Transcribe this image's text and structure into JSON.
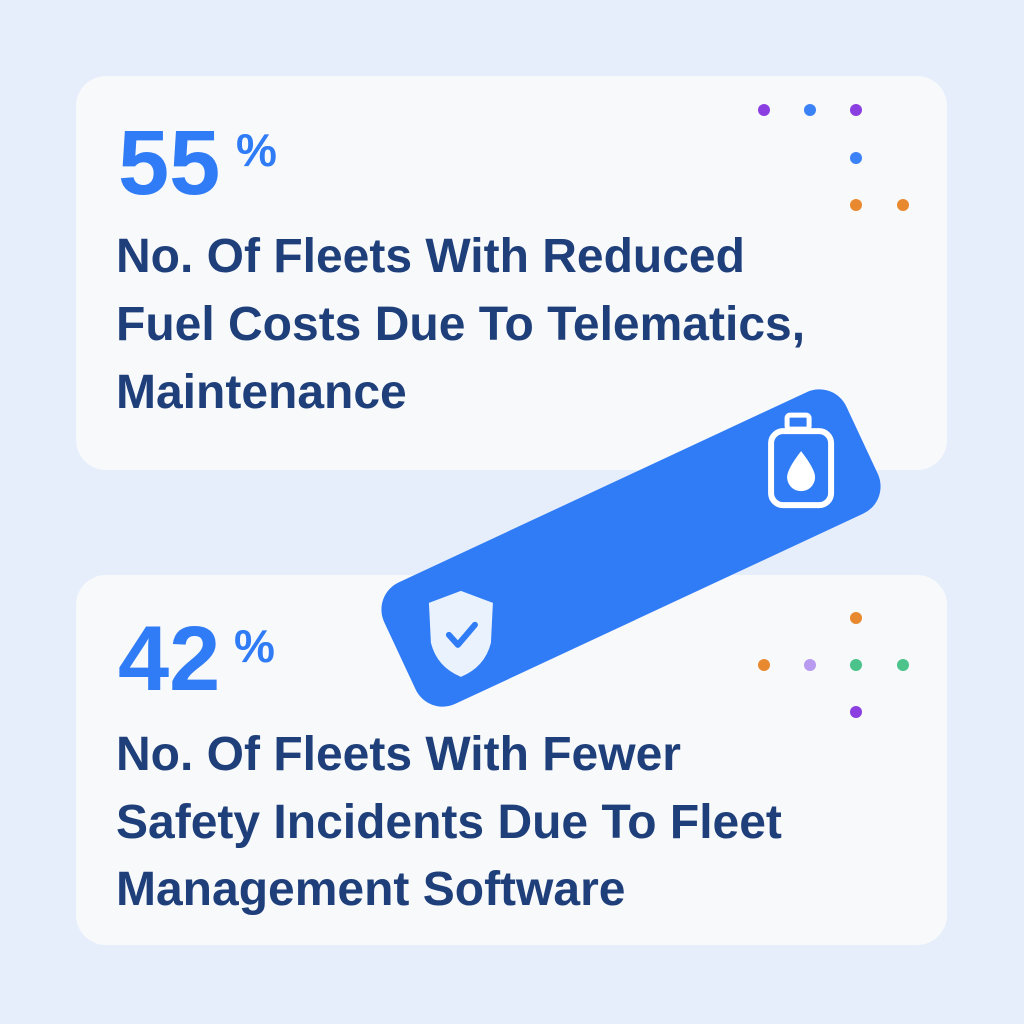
{
  "stats": [
    {
      "value": "55",
      "unit": "%",
      "lines": [
        "No. Of Fleets With Reduced",
        "Fuel Costs Due To Telematics,",
        "Maintenance"
      ]
    },
    {
      "value": "42",
      "unit": "%",
      "lines": [
        "No. Of Fleets With Fewer",
        "Safety Incidents Due To Fleet",
        "Management Software"
      ]
    }
  ]
}
